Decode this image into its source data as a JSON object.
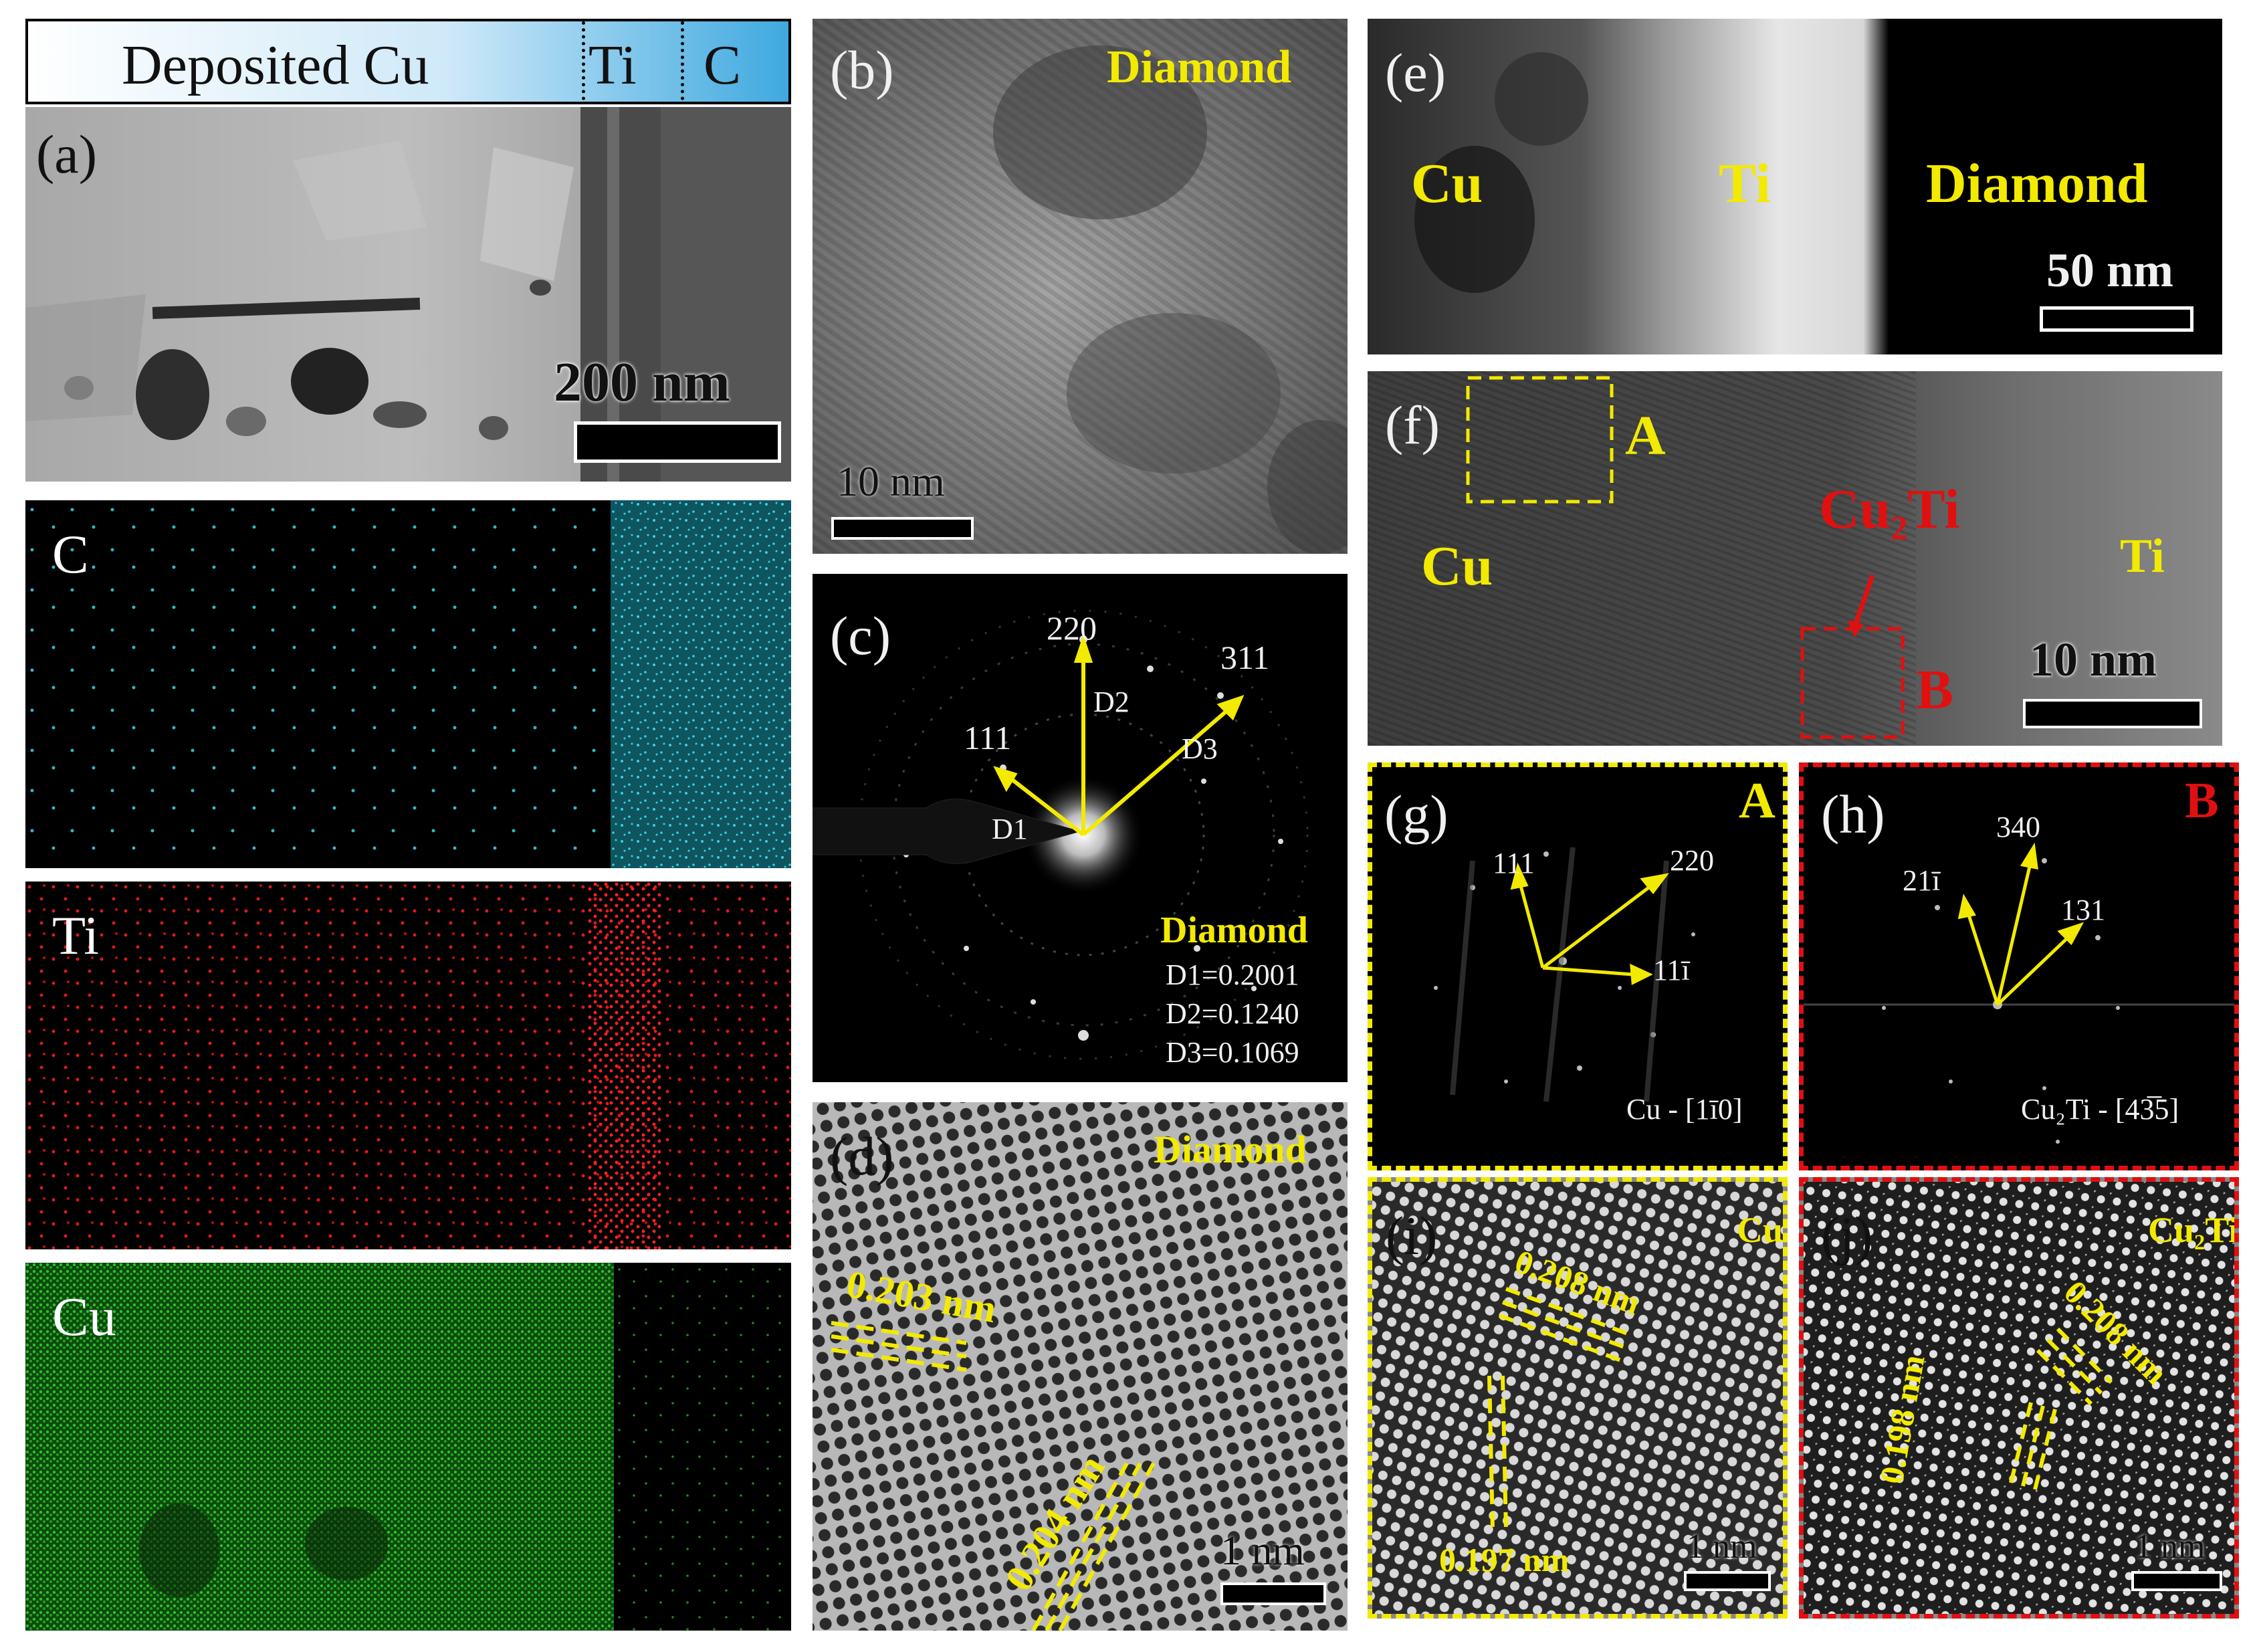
{
  "panel_a": {
    "header": {
      "deposited": "Deposited Cu",
      "ti": "Ti",
      "c": "C"
    },
    "label": "(a)",
    "scale": "200 nm"
  },
  "eds_maps": [
    {
      "element": "C",
      "color": "#2fd6e6"
    },
    {
      "element": "Ti",
      "color": "#e01818"
    },
    {
      "element": "Cu",
      "color": "#22b022"
    }
  ],
  "panel_b": {
    "label": "(b)",
    "material": "Diamond",
    "scale": "10 nm"
  },
  "panel_c": {
    "label": "(c)",
    "spots": {
      "s220": "220",
      "s311": "311",
      "s111": "111"
    },
    "d_labels": {
      "d1": "D1",
      "d2": "D2",
      "d3": "D3"
    },
    "material": "Diamond",
    "d_values": [
      "D1=0.2001",
      "D2=0.1240",
      "D3=0.1069"
    ]
  },
  "panel_d": {
    "label": "(d)",
    "material": "Diamond",
    "spacing1": "0.203 nm",
    "spacing2": "0.204 nm",
    "scale": "1 nm"
  },
  "panel_e": {
    "label": "(e)",
    "cu": "Cu",
    "ti": "Ti",
    "diamond": "Diamond",
    "scale": "50 nm"
  },
  "panel_f": {
    "label": "(f)",
    "box_a": "A",
    "cu": "Cu",
    "cu2ti": "Cu₂Ti",
    "ti": "Ti",
    "box_b": "B",
    "scale": "10 nm"
  },
  "panel_g": {
    "label": "(g)",
    "tag": "A",
    "s111": "111",
    "s220": "220",
    "s11bar1": "11ī",
    "zone": "Cu - [1ī0]"
  },
  "panel_h": {
    "label": "(h)",
    "tag": "B",
    "s340": "340",
    "s21bar1": "21ī",
    "s131": "131",
    "zone": "Cu₂Ti - [43̅5]"
  },
  "panel_i": {
    "label": "(i)",
    "material": "Cu",
    "spacing1": "0.208 nm",
    "spacing2": "0.197 nm",
    "scale": "1 nm"
  },
  "panel_j": {
    "label": "(j)",
    "material": "Cu₂Ti",
    "spacing1": "0.208 nm",
    "spacing2": "0.198 nm",
    "scale": "1 nm"
  },
  "colors": {
    "annotation_yellow": "#f2ea00",
    "annotation_red": "#e01010",
    "header_blue": "#3fa9e0"
  }
}
